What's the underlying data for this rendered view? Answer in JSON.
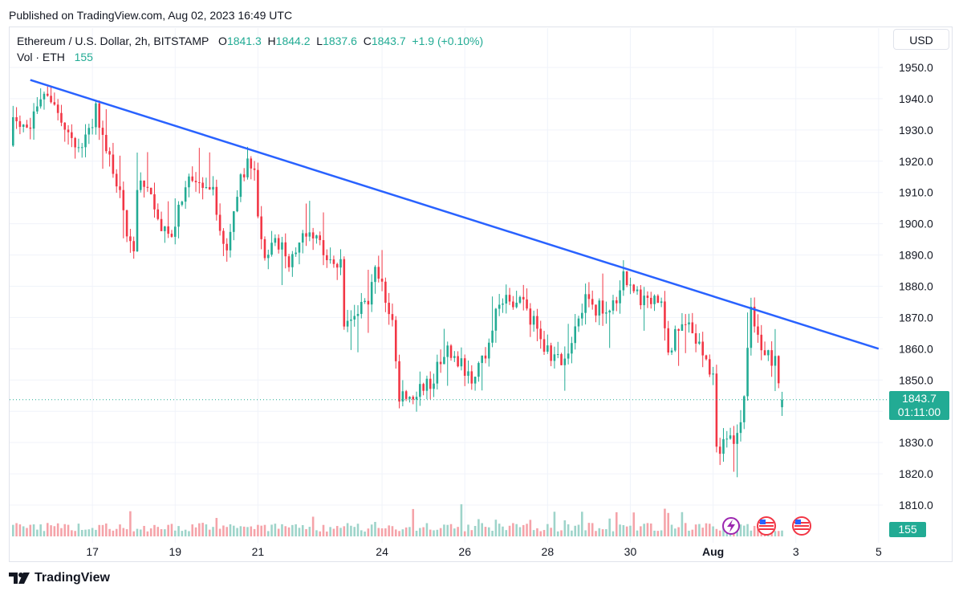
{
  "published": "Published on TradingView.com, Aug 02, 2023 16:49 UTC",
  "legend": {
    "symbol": "Ethereum / U.S. Dollar, 2h, BITSTAMP",
    "o_label": "O",
    "o": "1841.3",
    "h_label": "H",
    "h": "1844.2",
    "l_label": "L",
    "l": "1837.6",
    "c_label": "C",
    "c": "1843.7",
    "change": "+1.9 (+0.10%)",
    "vol_label": "Vol · ETH",
    "vol": "155"
  },
  "currency": "USD",
  "last_price": "1843.7",
  "countdown": "01:11:00",
  "volume_value": "155",
  "footer": "TradingView",
  "colors": {
    "up": "#22ab94",
    "down": "#f23645",
    "trendline": "#2962ff",
    "up_vol": "#9ed4ca",
    "down_vol": "#f5a3a9"
  },
  "chart_data": {
    "type": "candlestick",
    "title": "",
    "xlabel": "",
    "ylabel": "",
    "ylim": [
      1805,
      1955
    ],
    "y_ticks": [
      1810.0,
      1820.0,
      1830.0,
      1840.0,
      1850.0,
      1860.0,
      1870.0,
      1880.0,
      1890.0,
      1900.0,
      1910.0,
      1920.0,
      1930.0,
      1940.0,
      1950.0
    ],
    "y_tick_labels": [
      "1810.0",
      "1820.0",
      "1830.0",
      "1840.0",
      "1850.0",
      "1860.0",
      "1870.0",
      "1880.0",
      "1890.0",
      "1900.0",
      "1910.0",
      "1920.0",
      "1930.0",
      "1940.0",
      "1950.0"
    ],
    "x_ticks": [
      {
        "label": "17",
        "day": 17
      },
      {
        "label": "19",
        "day": 19
      },
      {
        "label": "21",
        "day": 21
      },
      {
        "label": "24",
        "day": 24
      },
      {
        "label": "26",
        "day": 26
      },
      {
        "label": "28",
        "day": 28
      },
      {
        "label": "30",
        "day": 30
      },
      {
        "label": "Aug",
        "day": 32
      },
      {
        "label": "3",
        "day": 34
      },
      {
        "label": "5",
        "day": 36
      }
    ],
    "x_range_days": [
      15.0,
      36.1
    ],
    "close_path": [
      [
        15.0,
        1925
      ],
      [
        15.1,
        1935
      ],
      [
        15.4,
        1929
      ],
      [
        15.6,
        1936
      ],
      [
        15.8,
        1941
      ],
      [
        16.0,
        1938
      ],
      [
        16.3,
        1932
      ],
      [
        16.5,
        1928
      ],
      [
        16.7,
        1922
      ],
      [
        16.9,
        1929
      ],
      [
        17.1,
        1937
      ],
      [
        17.3,
        1925
      ],
      [
        17.5,
        1918
      ],
      [
        17.7,
        1908
      ],
      [
        17.9,
        1893
      ],
      [
        18.0,
        1890
      ],
      [
        18.1,
        1912
      ],
      [
        18.3,
        1915
      ],
      [
        18.5,
        1905
      ],
      [
        18.7,
        1898
      ],
      [
        18.9,
        1895
      ],
      [
        19.1,
        1905
      ],
      [
        19.3,
        1913
      ],
      [
        19.5,
        1912
      ],
      [
        19.7,
        1911
      ],
      [
        19.9,
        1912
      ],
      [
        20.1,
        1898
      ],
      [
        20.3,
        1892
      ],
      [
        20.5,
        1910
      ],
      [
        20.7,
        1918
      ],
      [
        20.8,
        1920
      ],
      [
        20.9,
        1918
      ],
      [
        21.0,
        1900
      ],
      [
        21.2,
        1889
      ],
      [
        21.4,
        1895
      ],
      [
        21.6,
        1892
      ],
      [
        21.8,
        1887
      ],
      [
        22.0,
        1896
      ],
      [
        22.2,
        1897
      ],
      [
        22.4,
        1895
      ],
      [
        22.6,
        1891
      ],
      [
        22.8,
        1889
      ],
      [
        23.0,
        1887
      ],
      [
        23.1,
        1865
      ],
      [
        23.3,
        1872
      ],
      [
        23.5,
        1874
      ],
      [
        23.7,
        1872
      ],
      [
        23.8,
        1887
      ],
      [
        24.0,
        1882
      ],
      [
        24.1,
        1873
      ],
      [
        24.3,
        1865
      ],
      [
        24.4,
        1840
      ],
      [
        24.5,
        1848
      ],
      [
        24.6,
        1843
      ],
      [
        24.8,
        1845
      ],
      [
        25.0,
        1848
      ],
      [
        25.2,
        1850
      ],
      [
        25.4,
        1855
      ],
      [
        25.6,
        1860
      ],
      [
        25.8,
        1857
      ],
      [
        26.0,
        1853
      ],
      [
        26.2,
        1850
      ],
      [
        26.4,
        1855
      ],
      [
        26.6,
        1862
      ],
      [
        26.8,
        1876
      ],
      [
        27.0,
        1875
      ],
      [
        27.2,
        1872
      ],
      [
        27.3,
        1880
      ],
      [
        27.5,
        1871
      ],
      [
        27.7,
        1868
      ],
      [
        27.9,
        1861
      ],
      [
        28.1,
        1858
      ],
      [
        28.3,
        1856
      ],
      [
        28.5,
        1860
      ],
      [
        28.7,
        1866
      ],
      [
        28.9,
        1876
      ],
      [
        29.1,
        1873
      ],
      [
        29.3,
        1873
      ],
      [
        29.5,
        1871
      ],
      [
        29.7,
        1876
      ],
      [
        29.8,
        1885
      ],
      [
        30.0,
        1880
      ],
      [
        30.2,
        1877
      ],
      [
        30.4,
        1874
      ],
      [
        30.6,
        1878
      ],
      [
        30.8,
        1872
      ],
      [
        30.9,
        1858
      ],
      [
        31.1,
        1865
      ],
      [
        31.3,
        1869
      ],
      [
        31.5,
        1866
      ],
      [
        31.7,
        1860
      ],
      [
        31.9,
        1855
      ],
      [
        32.0,
        1850
      ],
      [
        32.1,
        1825
      ],
      [
        32.3,
        1830
      ],
      [
        32.5,
        1830
      ],
      [
        32.7,
        1838
      ],
      [
        32.9,
        1872
      ],
      [
        33.0,
        1869
      ],
      [
        33.1,
        1863
      ],
      [
        33.3,
        1858
      ],
      [
        33.5,
        1856
      ],
      [
        33.6,
        1845
      ],
      [
        33.7,
        1843.7
      ]
    ],
    "trendline": [
      [
        15.5,
        1946
      ],
      [
        36.0,
        1860
      ]
    ],
    "volume": {
      "max": 1200,
      "last": 155
    }
  }
}
